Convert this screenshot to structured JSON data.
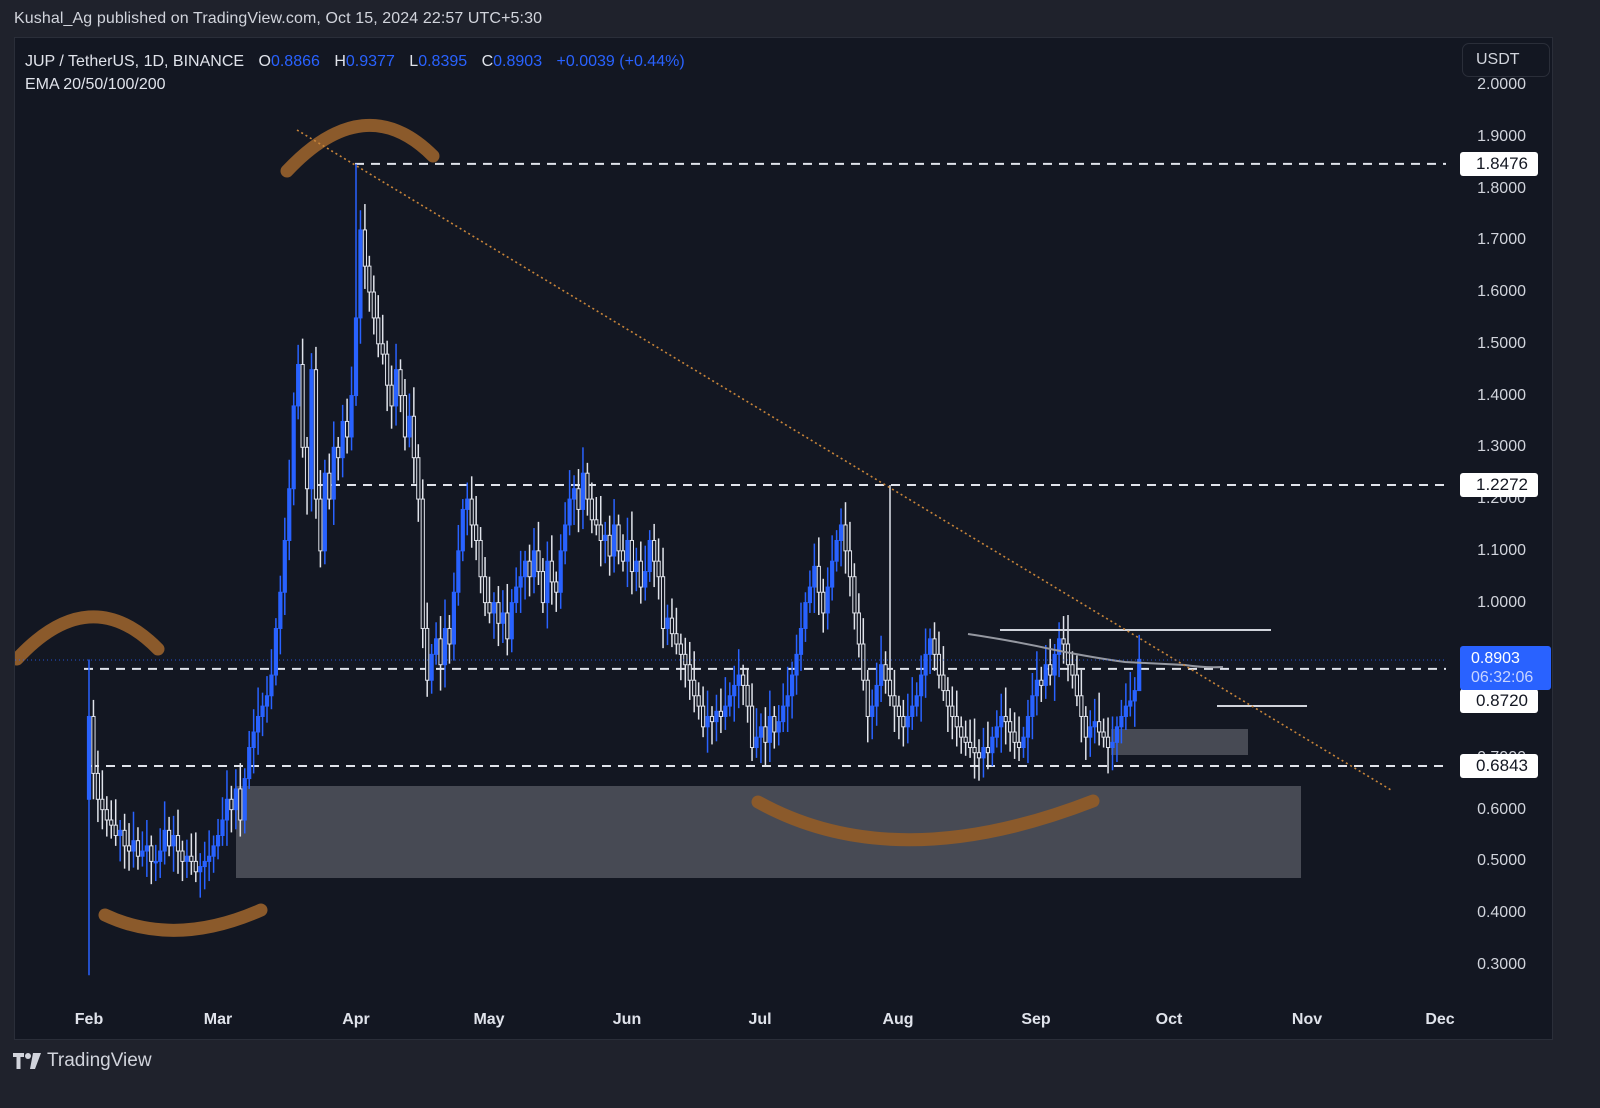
{
  "publish_line": "Kushal_Ag published on TradingView.com, Oct 15, 2024 22:57 UTC+5:30",
  "legend": {
    "symbol": "JUP / TetherUS, 1D, BINANCE",
    "open_label": "O",
    "open": "0.8866",
    "high_label": "H",
    "high": "0.9377",
    "low_label": "L",
    "low": "0.8395",
    "close_label": "C",
    "close": "0.8903",
    "change": "+0.0039 (+0.44%)",
    "indicator": "EMA 20/50/100/200"
  },
  "currency_button": "USDT",
  "price_axis": {
    "ticks": [
      "2.0000",
      "1.9000",
      "1.8000",
      "1.7000",
      "1.6000",
      "1.5000",
      "1.4000",
      "1.3000",
      "1.2000",
      "1.1000",
      "1.0000",
      "0.9000",
      "0.8000",
      "0.7000",
      "0.6000",
      "0.5000",
      "0.4000",
      "0.3000"
    ],
    "level_labels": [
      "1.8476",
      "1.2272",
      "0.8720",
      "0.6843"
    ],
    "current_price": "0.8903",
    "countdown": "06:32:06"
  },
  "time_axis": {
    "ticks": [
      "Feb",
      "Mar",
      "Apr",
      "May",
      "Jun",
      "Jul",
      "Aug",
      "Sep",
      "Oct",
      "Nov",
      "Dec"
    ]
  },
  "branding": "TradingView",
  "colors": {
    "background": "#131722",
    "bull": "#2962ff",
    "bear": "#e0e3eb",
    "trendline": "#c8853a",
    "annotation": "#8b5a2b",
    "zone": "#4a4d57"
  },
  "chart_data": {
    "type": "candlestick",
    "title": "JUP / TetherUS, 1D, BINANCE",
    "indicator": "EMA 20/50/100/200",
    "x_range": [
      "2024-01-31",
      "2024-12-10"
    ],
    "xticks": [
      "Feb",
      "Mar",
      "Apr",
      "May",
      "Jun",
      "Jul",
      "Aug",
      "Sep",
      "Oct",
      "Nov",
      "Dec"
    ],
    "ylim": [
      0.25,
      2.02
    ],
    "yticks": [
      2.0,
      1.9,
      1.8,
      1.7,
      1.6,
      1.5,
      1.4,
      1.3,
      1.2,
      1.1,
      1.0,
      0.9,
      0.8,
      0.7,
      0.6,
      0.5,
      0.4,
      0.3
    ],
    "last": {
      "open": 0.8866,
      "high": 0.9377,
      "low": 0.8395,
      "close": 0.8903,
      "change": 0.0039,
      "change_pct": 0.44
    },
    "horizontal_levels": [
      1.8476,
      1.2272,
      0.872,
      0.6843
    ],
    "short_levels": [
      {
        "price": 0.95,
        "from": "2024-08-23",
        "to": "2024-10-18"
      },
      {
        "price": 0.81,
        "from": "2024-10-12",
        "to": "2024-10-31"
      }
    ],
    "zones": [
      {
        "from": "2024-03-05",
        "to": "2024-10-31",
        "top": 0.648,
        "bottom": 0.47
      },
      {
        "from": "2024-09-16",
        "to": "2024-10-17",
        "top": 0.75,
        "bottom": 0.7
      }
    ],
    "trendline": {
      "from": [
        "2024-03-20",
        1.92
      ],
      "to": [
        "2024-10-30",
        0.635
      ]
    },
    "ema_segment": {
      "from": [
        "2024-08-19",
        0.945
      ],
      "to": [
        "2024-10-14",
        0.88
      ]
    },
    "closes": [
      0.78,
      0.67,
      0.62,
      0.6,
      0.58,
      0.57,
      0.55,
      0.56,
      0.53,
      0.52,
      0.54,
      0.51,
      0.52,
      0.53,
      0.5,
      0.5,
      0.52,
      0.56,
      0.53,
      0.55,
      0.52,
      0.5,
      0.51,
      0.5,
      0.48,
      0.49,
      0.5,
      0.51,
      0.53,
      0.55,
      0.58,
      0.62,
      0.6,
      0.64,
      0.58,
      0.66,
      0.72,
      0.75,
      0.78,
      0.8,
      0.82,
      0.86,
      0.95,
      1.02,
      1.12,
      1.22,
      1.38,
      1.46,
      1.3,
      1.22,
      1.45,
      1.2,
      1.1,
      1.25,
      1.2,
      1.3,
      1.28,
      1.35,
      1.32,
      1.4,
      1.55,
      1.72,
      1.65,
      1.6,
      1.55,
      1.5,
      1.48,
      1.42,
      1.38,
      1.45,
      1.4,
      1.32,
      1.36,
      1.28,
      1.2,
      0.95,
      0.85,
      0.9,
      0.93,
      0.88,
      0.95,
      0.92,
      1.02,
      1.1,
      1.18,
      1.2,
      1.15,
      1.12,
      1.05,
      1.0,
      0.98,
      1.0,
      0.96,
      0.98,
      0.93,
      1.0,
      1.03,
      1.05,
      1.08,
      1.05,
      1.1,
      1.06,
      1.0,
      1.08,
      1.04,
      1.02,
      1.1,
      1.15,
      1.2,
      1.22,
      1.18,
      1.25,
      1.2,
      1.16,
      1.15,
      1.12,
      1.13,
      1.09,
      1.15,
      1.1,
      1.08,
      1.12,
      1.06,
      1.08,
      1.03,
      1.06,
      1.12,
      1.08,
      1.05,
      0.95,
      0.97,
      0.94,
      0.92,
      0.9,
      0.88,
      0.85,
      0.82,
      0.8,
      0.76,
      0.78,
      0.77,
      0.79,
      0.78,
      0.8,
      0.82,
      0.84,
      0.86,
      0.84,
      0.8,
      0.72,
      0.74,
      0.76,
      0.73,
      0.78,
      0.75,
      0.77,
      0.8,
      0.82,
      0.86,
      0.9,
      0.95,
      1.0,
      1.03,
      1.07,
      1.02,
      0.98,
      1.03,
      1.08,
      1.12,
      1.15,
      1.1,
      1.05,
      0.98,
      0.92,
      0.85,
      0.78,
      0.8,
      0.84,
      0.88,
      0.85,
      0.82,
      0.8,
      0.78,
      0.76,
      0.78,
      0.8,
      0.82,
      0.86,
      0.9,
      0.93,
      0.9,
      0.86,
      0.83,
      0.8,
      0.78,
      0.76,
      0.74,
      0.73,
      0.72,
      0.71,
      0.7,
      0.72,
      0.71,
      0.74,
      0.76,
      0.78,
      0.77,
      0.75,
      0.73,
      0.72,
      0.74,
      0.78,
      0.82,
      0.85,
      0.84,
      0.88,
      0.86,
      0.9,
      0.93,
      0.92,
      0.88,
      0.86,
      0.82,
      0.78,
      0.74,
      0.76,
      0.77,
      0.75,
      0.74,
      0.72,
      0.73,
      0.76,
      0.78,
      0.8,
      0.81,
      0.83,
      0.8903
    ]
  }
}
